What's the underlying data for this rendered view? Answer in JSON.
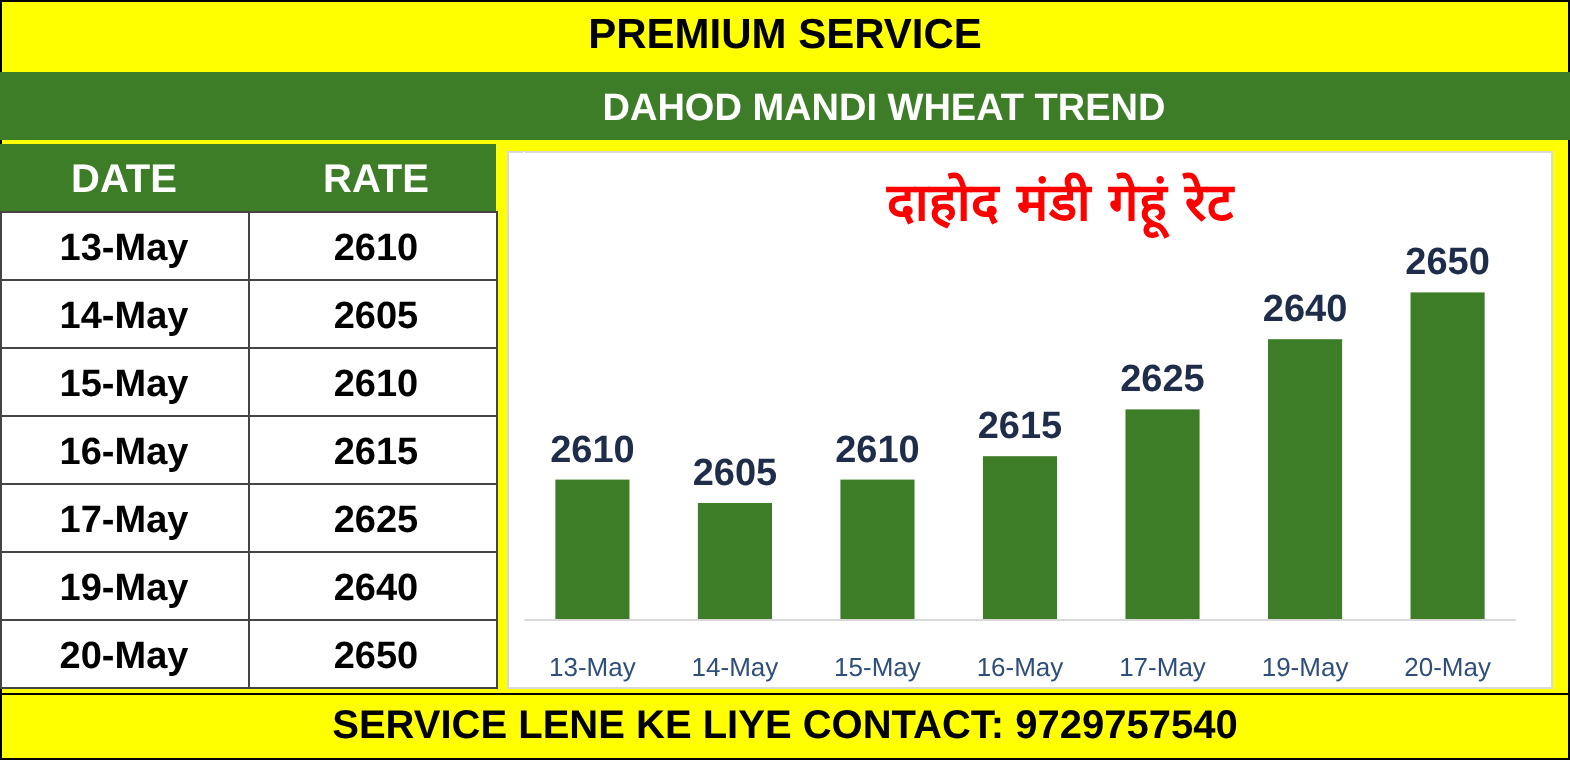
{
  "chart_data": {
    "type": "bar",
    "title": "PREMIUM SERVICE",
    "subtitle": "DAHOD MANDI WHEAT TREND",
    "annotations": [
      "दाहोद मंडी गेहूं रेट",
      "DATE",
      "RATE",
      "SERVICE LENE KE LIYE CONTACT: 9729757540",
      "2610",
      "2605",
      "2610",
      "2615",
      "2625",
      "2640",
      "2650"
    ],
    "categories": [
      "13-May",
      "14-May",
      "15-May",
      "16-May",
      "17-May",
      "19-May",
      "20-May"
    ],
    "values": [
      2610,
      2605,
      2610,
      2615,
      2625,
      2640,
      2650
    ],
    "color": "#3e7d27",
    "ylim": [
      2580,
      2680
    ],
    "tick_labels": "x",
    "data_labels": true
  }
}
